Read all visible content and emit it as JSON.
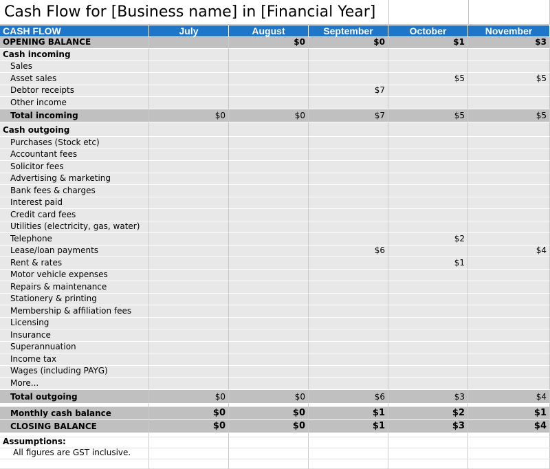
{
  "title": "Cash Flow for [Business name] in [Financial Year]",
  "header": {
    "label": "CASH FLOW",
    "months": [
      "July",
      "August",
      "September",
      "October",
      "November"
    ]
  },
  "opening_balance": {
    "label": "OPENING BALANCE",
    "values": [
      "",
      "$0",
      "$0",
      "$1",
      "$3"
    ]
  },
  "cash_incoming": {
    "label": "Cash incoming",
    "items": [
      {
        "label": "Sales",
        "values": [
          "",
          "",
          "",
          "",
          ""
        ]
      },
      {
        "label": "Asset sales",
        "values": [
          "",
          "",
          "",
          "$5",
          "$5"
        ]
      },
      {
        "label": "Debtor receipts",
        "values": [
          "",
          "",
          "$7",
          "",
          ""
        ]
      },
      {
        "label": "Other income",
        "values": [
          "",
          "",
          "",
          "",
          ""
        ]
      }
    ],
    "total": {
      "label": "Total incoming",
      "values": [
        "$0",
        "$0",
        "$7",
        "$5",
        "$5"
      ]
    }
  },
  "cash_outgoing": {
    "label": "Cash outgoing",
    "items": [
      {
        "label": "Purchases (Stock etc)",
        "values": [
          "",
          "",
          "",
          "",
          ""
        ]
      },
      {
        "label": "Accountant fees",
        "values": [
          "",
          "",
          "",
          "",
          ""
        ]
      },
      {
        "label": "Solicitor fees",
        "values": [
          "",
          "",
          "",
          "",
          ""
        ]
      },
      {
        "label": "Advertising & marketing",
        "values": [
          "",
          "",
          "",
          "",
          ""
        ]
      },
      {
        "label": "Bank fees & charges",
        "values": [
          "",
          "",
          "",
          "",
          ""
        ]
      },
      {
        "label": "Interest paid",
        "values": [
          "",
          "",
          "",
          "",
          ""
        ]
      },
      {
        "label": "Credit card fees",
        "values": [
          "",
          "",
          "",
          "",
          ""
        ]
      },
      {
        "label": "Utilities (electricity, gas, water)",
        "values": [
          "",
          "",
          "",
          "",
          ""
        ]
      },
      {
        "label": "Telephone",
        "values": [
          "",
          "",
          "",
          "$2",
          ""
        ]
      },
      {
        "label": "Lease/loan payments",
        "values": [
          "",
          "",
          "$6",
          "",
          "$4"
        ]
      },
      {
        "label": "Rent & rates",
        "values": [
          "",
          "",
          "",
          "$1",
          ""
        ]
      },
      {
        "label": "Motor vehicle expenses",
        "values": [
          "",
          "",
          "",
          "",
          ""
        ]
      },
      {
        "label": "Repairs & maintenance",
        "values": [
          "",
          "",
          "",
          "",
          ""
        ]
      },
      {
        "label": "Stationery & printing",
        "values": [
          "",
          "",
          "",
          "",
          ""
        ]
      },
      {
        "label": "Membership & affiliation fees",
        "values": [
          "",
          "",
          "",
          "",
          ""
        ]
      },
      {
        "label": "Licensing",
        "values": [
          "",
          "",
          "",
          "",
          ""
        ]
      },
      {
        "label": "Insurance",
        "values": [
          "",
          "",
          "",
          "",
          ""
        ]
      },
      {
        "label": "Superannuation",
        "values": [
          "",
          "",
          "",
          "",
          ""
        ]
      },
      {
        "label": "Income tax",
        "values": [
          "",
          "",
          "",
          "",
          ""
        ]
      },
      {
        "label": "Wages (including PAYG)",
        "values": [
          "",
          "",
          "",
          "",
          ""
        ]
      },
      {
        "label": "More...",
        "values": [
          "",
          "",
          "",
          "",
          ""
        ]
      }
    ],
    "total": {
      "label": "Total outgoing",
      "values": [
        "$0",
        "$0",
        "$6",
        "$3",
        "$4"
      ]
    }
  },
  "monthly_balance": {
    "label": "Monthly cash balance",
    "values": [
      "$0",
      "$0",
      "$1",
      "$2",
      "$1"
    ]
  },
  "closing_balance": {
    "label": "CLOSING BALANCE",
    "values": [
      "$0",
      "$0",
      "$1",
      "$3",
      "$4"
    ]
  },
  "assumptions": {
    "label": "Assumptions:",
    "note": "All figures are GST inclusive."
  }
}
